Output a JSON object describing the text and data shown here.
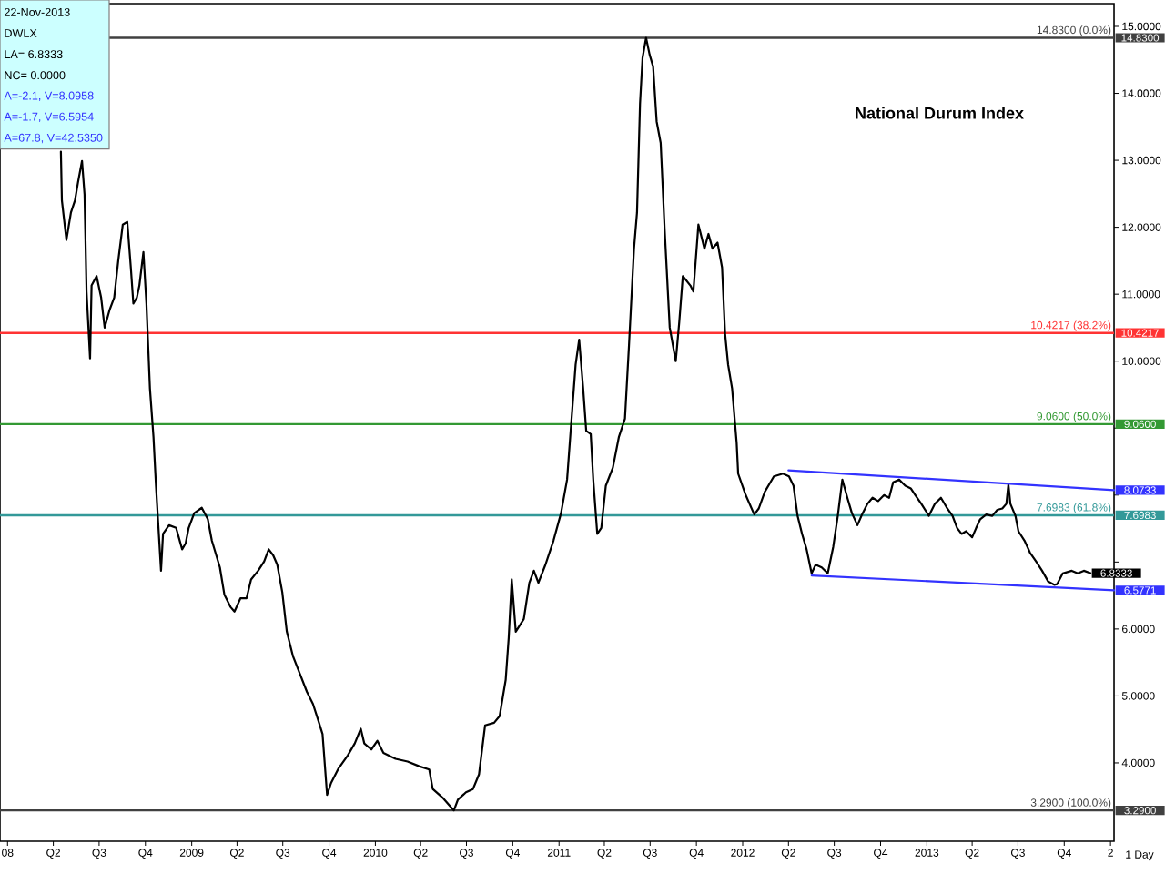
{
  "chart_data": {
    "type": "line",
    "title": "National Durum Index",
    "xlim": [
      "2007-12-17",
      "2014-01-08"
    ],
    "ylim": [
      2.83,
      15.34
    ],
    "xticks": [
      {
        "value": "2008-01-01",
        "label": "08"
      },
      {
        "value": "2008-04-01",
        "label": "Q2"
      },
      {
        "value": "2008-07-01",
        "label": "Q3"
      },
      {
        "value": "2008-10-01",
        "label": "Q4"
      },
      {
        "value": "2009-01-01",
        "label": "2009"
      },
      {
        "value": "2009-04-01",
        "label": "Q2"
      },
      {
        "value": "2009-07-01",
        "label": "Q3"
      },
      {
        "value": "2009-10-01",
        "label": "Q4"
      },
      {
        "value": "2010-01-01",
        "label": "2010"
      },
      {
        "value": "2010-04-01",
        "label": "Q2"
      },
      {
        "value": "2010-07-01",
        "label": "Q3"
      },
      {
        "value": "2010-10-01",
        "label": "Q4"
      },
      {
        "value": "2011-01-01",
        "label": "2011"
      },
      {
        "value": "2011-04-01",
        "label": "Q2"
      },
      {
        "value": "2011-07-01",
        "label": "Q3"
      },
      {
        "value": "2011-10-01",
        "label": "Q4"
      },
      {
        "value": "2012-01-01",
        "label": "2012"
      },
      {
        "value": "2012-04-01",
        "label": "Q2"
      },
      {
        "value": "2012-07-01",
        "label": "Q3"
      },
      {
        "value": "2012-10-01",
        "label": "Q4"
      },
      {
        "value": "2013-01-01",
        "label": "2013"
      },
      {
        "value": "2013-04-01",
        "label": "Q2"
      },
      {
        "value": "2013-07-01",
        "label": "Q3"
      },
      {
        "value": "2013-10-01",
        "label": "Q4"
      },
      {
        "value": "2014-01-01",
        "label": "2"
      }
    ],
    "yticks": [
      {
        "value": 4,
        "label": "4.0000"
      },
      {
        "value": 5,
        "label": "5.0000"
      },
      {
        "value": 6,
        "label": "6.0000"
      },
      {
        "value": 7,
        "label": null
      },
      {
        "value": 8,
        "label": null
      },
      {
        "value": 9,
        "label": null
      },
      {
        "value": 10,
        "label": "10.0000"
      },
      {
        "value": 11,
        "label": "11.0000"
      },
      {
        "value": 12,
        "label": "12.0000"
      },
      {
        "value": 13,
        "label": "13.0000"
      },
      {
        "value": 14,
        "label": "14.0000"
      },
      {
        "value": 15,
        "label": "15.0000"
      }
    ],
    "series": [
      {
        "color": "#000000",
        "x": [
          "2008-04-16",
          "2008-04-18",
          "2008-04-27",
          "2008-05-06",
          "2008-05-14",
          "2008-05-20",
          "2008-05-28",
          "2008-06-02",
          "2008-06-06",
          "2008-06-13",
          "2008-06-16",
          "2008-06-26",
          "2008-07-05",
          "2008-07-12",
          "2008-07-22",
          "2008-07-31",
          "2008-08-08",
          "2008-08-17",
          "2008-08-26",
          "2008-09-02",
          "2008-09-07",
          "2008-09-14",
          "2008-09-19",
          "2008-09-27",
          "2008-10-03",
          "2008-10-10",
          "2008-10-17",
          "2008-10-22",
          "2008-11-01",
          "2008-11-05",
          "2008-11-17",
          "2008-12-01",
          "2008-12-13",
          "2008-12-20",
          "2008-12-26",
          "2009-01-06",
          "2009-01-21",
          "2009-02-02",
          "2009-02-10",
          "2009-02-26",
          "2009-03-07",
          "2009-03-19",
          "2009-03-27",
          "2009-04-08",
          "2009-04-20",
          "2009-04-29",
          "2009-05-13",
          "2009-05-25",
          "2009-06-03",
          "2009-06-12",
          "2009-06-20",
          "2009-06-30",
          "2009-07-09",
          "2009-07-21",
          "2009-08-04",
          "2009-08-18",
          "2009-08-30",
          "2009-09-11",
          "2009-09-18",
          "2009-09-27",
          "2009-10-05",
          "2009-10-20",
          "2009-11-07",
          "2009-11-21",
          "2009-12-03",
          "2009-12-10",
          "2009-12-24",
          "2010-01-05",
          "2010-01-17",
          "2010-02-10",
          "2010-03-06",
          "2010-03-29",
          "2010-04-18",
          "2010-04-25",
          "2010-05-16",
          "2010-06-06",
          "2010-06-14",
          "2010-06-30",
          "2010-07-14",
          "2010-07-26",
          "2010-08-07",
          "2010-08-25",
          "2010-09-05",
          "2010-09-17",
          "2010-09-23",
          "2010-09-29",
          "2010-10-07",
          "2010-10-23",
          "2010-11-03",
          "2010-11-12",
          "2010-11-21",
          "2010-12-05",
          "2010-12-21",
          "2011-01-05",
          "2011-01-17",
          "2011-01-25",
          "2011-02-03",
          "2011-02-10",
          "2011-02-18",
          "2011-02-24",
          "2011-03-05",
          "2011-03-10",
          "2011-03-18",
          "2011-03-26",
          "2011-04-04",
          "2011-04-18",
          "2011-04-30",
          "2011-05-12",
          "2011-05-20",
          "2011-05-30",
          "2011-06-05",
          "2011-06-11",
          "2011-06-16",
          "2011-06-23",
          "2011-06-30",
          "2011-07-07",
          "2011-07-14",
          "2011-07-22",
          "2011-07-30",
          "2011-08-09",
          "2011-08-21",
          "2011-08-28",
          "2011-09-04",
          "2011-09-19",
          "2011-09-25",
          "2011-10-05",
          "2011-10-17",
          "2011-10-25",
          "2011-11-02",
          "2011-11-12",
          "2011-11-21",
          "2011-11-27",
          "2011-12-03",
          "2011-12-11",
          "2011-12-20",
          "2011-12-23",
          "2012-01-07",
          "2012-01-24",
          "2012-02-02",
          "2012-02-14",
          "2012-03-03",
          "2012-03-21",
          "2012-04-02",
          "2012-04-11",
          "2012-04-19",
          "2012-04-28",
          "2012-05-07",
          "2012-05-17",
          "2012-05-25",
          "2012-06-06",
          "2012-06-18",
          "2012-06-29",
          "2012-07-08",
          "2012-07-17",
          "2012-07-27",
          "2012-08-05",
          "2012-08-16",
          "2012-08-24",
          "2012-09-05",
          "2012-09-15",
          "2012-09-26",
          "2012-10-08",
          "2012-10-18",
          "2012-10-26",
          "2012-11-07",
          "2012-11-19",
          "2012-11-30",
          "2012-12-09",
          "2012-12-21",
          "2013-01-05",
          "2013-01-17",
          "2013-01-29",
          "2013-02-09",
          "2013-02-21",
          "2013-03-02",
          "2013-03-11",
          "2013-03-20",
          "2013-04-01",
          "2013-04-09",
          "2013-04-17",
          "2013-04-29",
          "2013-05-11",
          "2013-05-21",
          "2013-05-31",
          "2013-06-08",
          "2013-06-12",
          "2013-06-16",
          "2013-06-26",
          "2013-07-02",
          "2013-07-14",
          "2013-07-25",
          "2013-08-06",
          "2013-08-18",
          "2013-08-30",
          "2013-09-11",
          "2013-09-17",
          "2013-09-28",
          "2013-10-16",
          "2013-10-28",
          "2013-11-09",
          "2013-11-22"
        ],
        "values": [
          13.13,
          12.4,
          11.81,
          12.22,
          12.4,
          12.67,
          12.99,
          12.49,
          11.04,
          10.04,
          11.13,
          11.27,
          10.95,
          10.5,
          10.77,
          10.95,
          11.5,
          12.04,
          12.08,
          11.4,
          10.86,
          10.95,
          11.13,
          11.63,
          10.86,
          9.59,
          8.87,
          8.14,
          6.87,
          7.42,
          7.55,
          7.51,
          7.19,
          7.28,
          7.51,
          7.73,
          7.81,
          7.64,
          7.32,
          6.92,
          6.51,
          6.33,
          6.26,
          6.46,
          6.46,
          6.74,
          6.87,
          7.01,
          7.19,
          7.1,
          6.96,
          6.55,
          5.96,
          5.6,
          5.33,
          5.06,
          4.88,
          4.6,
          4.43,
          3.52,
          3.7,
          3.92,
          4.11,
          4.29,
          4.51,
          4.29,
          4.2,
          4.33,
          4.15,
          4.06,
          4.02,
          3.95,
          3.9,
          3.61,
          3.47,
          3.29,
          3.45,
          3.56,
          3.61,
          3.83,
          4.56,
          4.6,
          4.7,
          5.24,
          5.87,
          6.74,
          5.96,
          6.15,
          6.69,
          6.87,
          6.69,
          6.96,
          7.32,
          7.73,
          8.23,
          9.05,
          9.95,
          10.32,
          9.59,
          8.96,
          8.91,
          8.23,
          7.42,
          7.51,
          8.14,
          8.41,
          8.87,
          9.14,
          10.23,
          11.68,
          12.22,
          13.85,
          14.53,
          14.83,
          14.58,
          14.4,
          13.58,
          13.26,
          11.95,
          10.5,
          10.0,
          10.59,
          11.27,
          11.13,
          11.04,
          12.04,
          11.68,
          11.9,
          11.68,
          11.77,
          11.4,
          10.41,
          9.95,
          9.59,
          8.78,
          8.32,
          8.0,
          7.71,
          7.8,
          8.05,
          8.28,
          8.32,
          8.28,
          8.14,
          7.69,
          7.42,
          7.19,
          6.83,
          6.96,
          6.92,
          6.83,
          7.23,
          7.69,
          8.23,
          7.96,
          7.73,
          7.55,
          7.69,
          7.87,
          7.96,
          7.91,
          8.0,
          7.96,
          8.19,
          8.23,
          8.14,
          8.1,
          8.0,
          7.87,
          7.69,
          7.87,
          7.96,
          7.82,
          7.69,
          7.51,
          7.42,
          7.46,
          7.37,
          7.51,
          7.64,
          7.71,
          7.69,
          7.78,
          7.8,
          7.87,
          8.16,
          7.87,
          7.69,
          7.46,
          7.32,
          7.14,
          7.01,
          6.87,
          6.71,
          6.66,
          6.67,
          6.83,
          6.87,
          6.83,
          6.87,
          6.8333
        ],
        "value_labels": [
          null,
          null,
          null,
          null,
          null,
          null,
          null,
          null,
          null,
          null,
          null,
          null,
          null,
          null,
          null,
          null,
          null,
          null,
          null,
          null,
          null,
          null,
          null,
          null,
          null,
          null,
          null,
          null,
          null,
          null,
          null,
          null,
          null,
          null,
          null,
          null,
          null,
          null,
          null,
          null,
          null,
          null,
          null,
          null,
          null,
          null,
          null,
          null,
          null,
          null,
          null,
          null,
          null,
          null,
          null,
          null,
          null,
          null,
          null,
          null,
          null,
          null,
          null,
          null,
          null,
          null,
          null,
          null,
          null,
          null,
          null,
          null,
          null,
          null,
          null,
          null,
          null,
          null,
          null,
          null,
          null,
          null,
          null,
          null,
          null,
          null,
          null,
          null,
          null,
          null,
          null,
          null,
          null,
          null,
          null,
          null,
          null,
          null,
          null,
          null,
          null,
          null,
          null,
          null,
          null,
          null,
          null,
          null,
          null,
          null,
          null,
          null,
          null,
          null,
          null,
          null,
          null,
          null,
          null,
          null,
          null,
          null,
          null,
          null,
          null,
          null,
          null,
          null,
          null,
          null,
          null,
          null,
          null,
          null,
          null,
          null,
          null,
          null,
          null,
          null,
          null,
          null,
          null,
          null,
          null,
          null,
          null,
          null,
          null,
          null,
          null,
          null,
          null,
          null,
          null,
          null,
          null,
          null,
          null,
          null,
          null,
          null,
          null,
          null,
          null,
          null,
          null,
          null,
          null,
          null,
          null,
          null,
          null,
          null,
          null,
          null,
          null,
          null,
          null,
          null,
          null,
          null,
          null,
          null,
          null,
          null,
          null,
          null,
          null,
          null,
          null,
          null,
          null,
          null,
          null,
          null,
          null,
          null,
          null,
          null,
          "6.8333"
        ]
      },
      {
        "type": "line",
        "color": "#3333ff",
        "x": [
          "2012-04-01",
          "2014-01-08"
        ],
        "values": [
          8.37,
          8.0733
        ],
        "value_labels": [
          null,
          "8.0733"
        ]
      },
      {
        "type": "line",
        "color": "#3333ff",
        "x": [
          "2012-05-17",
          "2014-01-08"
        ],
        "values": [
          6.8,
          6.5771
        ],
        "value_labels": [
          null,
          "6.5771"
        ]
      }
    ],
    "ref_lines": [
      {
        "axis": "y",
        "value": 14.83,
        "label": "14.8300 (0.0%)",
        "color": "#404040"
      },
      {
        "axis": "y",
        "value": 10.4217,
        "label": "10.4217 (38.2%)",
        "color": "#ff3333"
      },
      {
        "axis": "y",
        "value": 9.06,
        "label": "9.0600 (50.0%)",
        "color": "#339933"
      },
      {
        "axis": "y",
        "value": 7.6983,
        "label": "7.6983 (61.8%)",
        "color": "#339999"
      },
      {
        "axis": "y",
        "value": 3.29,
        "label": "3.2900 (100.0%)",
        "color": "#404040"
      }
    ],
    "annotations": [
      "22-Nov-2013",
      "DWLX",
      "LA= 6.8333",
      "NC= 0.0000",
      "A=-2.1, V=8.0958",
      "A=-1.7, V=6.5954",
      "A=67.8, V=42.5350",
      "1 Day",
      {
        "text": "14.8300",
        "x": "2014-01-08",
        "y": 14.83
      },
      {
        "text": "10.4217",
        "x": "2014-01-08",
        "y": 10.4217
      },
      {
        "text": "9.0600",
        "x": "2014-01-08",
        "y": 9.06
      },
      {
        "text": "7.6983",
        "x": "2014-01-08",
        "y": 7.6983
      },
      {
        "text": "3.2900",
        "x": "2014-01-08",
        "y": 3.29
      }
    ]
  }
}
